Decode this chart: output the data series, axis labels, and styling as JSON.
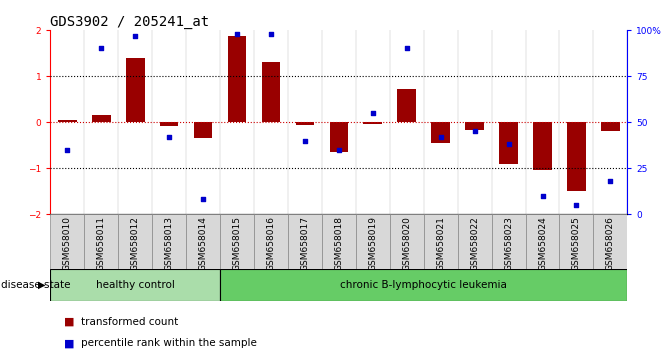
{
  "title": "GDS3902 / 205241_at",
  "samples": [
    "GSM658010",
    "GSM658011",
    "GSM658012",
    "GSM658013",
    "GSM658014",
    "GSM658015",
    "GSM658016",
    "GSM658017",
    "GSM658018",
    "GSM658019",
    "GSM658020",
    "GSM658021",
    "GSM658022",
    "GSM658023",
    "GSM658024",
    "GSM658025",
    "GSM658026"
  ],
  "bar_values": [
    0.05,
    0.15,
    1.4,
    -0.08,
    -0.35,
    1.88,
    1.3,
    -0.07,
    -0.65,
    -0.05,
    0.72,
    -0.45,
    -0.18,
    -0.9,
    -1.05,
    -1.5,
    -0.2
  ],
  "dot_values": [
    35,
    90,
    97,
    42,
    8,
    98,
    98,
    40,
    35,
    55,
    90,
    42,
    45,
    38,
    10,
    5,
    18
  ],
  "ylim": [
    -2,
    2
  ],
  "right_ylim": [
    0,
    100
  ],
  "bar_color": "#990000",
  "dot_color": "#0000cc",
  "healthy_count": 5,
  "healthy_label": "healthy control",
  "healthy_color": "#aaddaa",
  "leukemia_label": "chronic B-lymphocytic leukemia",
  "leukemia_color": "#66cc66",
  "disease_state_label": "disease state",
  "legend_bar_label": "transformed count",
  "legend_dot_label": "percentile rank within the sample",
  "yticks_left": [
    -2,
    -1,
    0,
    1,
    2
  ],
  "yticks_right": [
    0,
    25,
    50,
    75,
    100
  ],
  "dotted_lines_black": [
    -1,
    1
  ],
  "zero_line_color": "#cc0000",
  "bg_color": "#ffffff",
  "title_fontsize": 10,
  "tick_fontsize": 6.5,
  "label_fontsize": 8,
  "sample_box_color": "#d8d8d8",
  "sample_box_edge": "#888888"
}
